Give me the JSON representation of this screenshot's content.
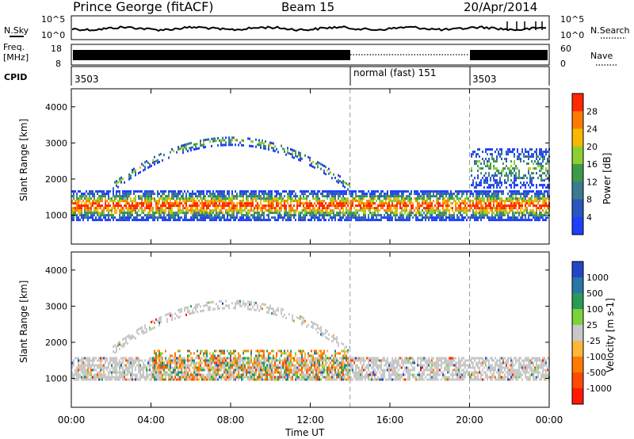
{
  "header": {
    "station": "Prince George (fitACF)",
    "beam": "Beam 15",
    "date": "20/Apr/2014"
  },
  "panels": {
    "nsky_label": "N.Sky",
    "nsky_ticks": [
      "10^5",
      "10^0"
    ],
    "nsearch_label": "N.Search",
    "nsearch_ticks": [
      "10^5",
      "10^0"
    ],
    "freq_label_1": "Freq.",
    "freq_label_2": "[MHz]",
    "freq_ticks": [
      "18",
      "8"
    ],
    "nave_label": "Nave",
    "nave_ticks": [
      "60",
      "0"
    ],
    "cpid_label": "CPID",
    "cpid_segments": [
      {
        "label": "3503",
        "start_h": 0,
        "end_h": 14
      },
      {
        "label": "normal (fast) 151",
        "start_h": 14,
        "end_h": 20
      },
      {
        "label": "3503",
        "start_h": 20,
        "end_h": 24
      }
    ]
  },
  "chart_data": [
    {
      "type": "heatmap",
      "title": "",
      "xlabel": "Time UT",
      "ylabel": "Slant Range [km]",
      "xlim": [
        0,
        24
      ],
      "ylim": [
        200,
        4500
      ],
      "xticks": [
        "00:00",
        "04:00",
        "08:00",
        "12:00",
        "16:00",
        "20:00",
        "00:00"
      ],
      "yticks": [
        1000,
        2000,
        3000,
        4000
      ],
      "mode_change_lines_h": [
        14,
        20
      ],
      "colorbar": {
        "label": "Power [dB]",
        "ticks": [
          "4",
          "8",
          "12",
          "16",
          "20",
          "24",
          "28"
        ],
        "colors": [
          "#1f3fff",
          "#2c55c0",
          "#3b7a8f",
          "#3d9a4a",
          "#8ccf2e",
          "#f6b800",
          "#ff7a00",
          "#ff2800"
        ]
      },
      "bands": [
        {
          "name": "main echo band",
          "start_h": 0,
          "end_h": 24,
          "range_km": [
            900,
            1700
          ],
          "peak_db": 28
        },
        {
          "name": "upper arc",
          "start_h": 2,
          "end_h": 14,
          "range_km": [
            1600,
            3300
          ],
          "peak_db": 16
        },
        {
          "name": "late upper scatter",
          "start_h": 20,
          "end_h": 24,
          "range_km": [
            1800,
            2900
          ],
          "peak_db": 14
        }
      ]
    },
    {
      "type": "heatmap",
      "title": "",
      "xlabel": "Time UT",
      "ylabel": "Slant Range [km]",
      "xlim": [
        0,
        24
      ],
      "ylim": [
        200,
        4500
      ],
      "xticks": [
        "00:00",
        "04:00",
        "08:00",
        "12:00",
        "16:00",
        "20:00",
        "00:00"
      ],
      "yticks": [
        1000,
        2000,
        3000,
        4000
      ],
      "mode_change_lines_h": [
        14,
        20
      ],
      "colorbar": {
        "label": "Velocity [m s-1]",
        "ticks": [
          "1000",
          "500",
          "100",
          "25",
          "-25",
          "-100",
          "-500",
          "-1000"
        ],
        "colors": [
          "#2346c8",
          "#2a75a8",
          "#2c9a57",
          "#7bd23b",
          "#c8c8c8",
          "#ffb63a",
          "#ff7a00",
          "#ff4a00",
          "#ff1a00"
        ]
      },
      "bands": [
        {
          "name": "ground scatter band",
          "start_h": 0,
          "end_h": 24,
          "range_km": [
            1000,
            1600
          ],
          "velocity": 0
        },
        {
          "name": "ionospheric band",
          "start_h": 4,
          "end_h": 14,
          "range_km": [
            1000,
            1800
          ],
          "velocity": -300
        },
        {
          "name": "upper arc",
          "start_h": 2,
          "end_h": 14,
          "range_km": [
            1600,
            3300
          ],
          "velocity": 0
        }
      ]
    }
  ]
}
